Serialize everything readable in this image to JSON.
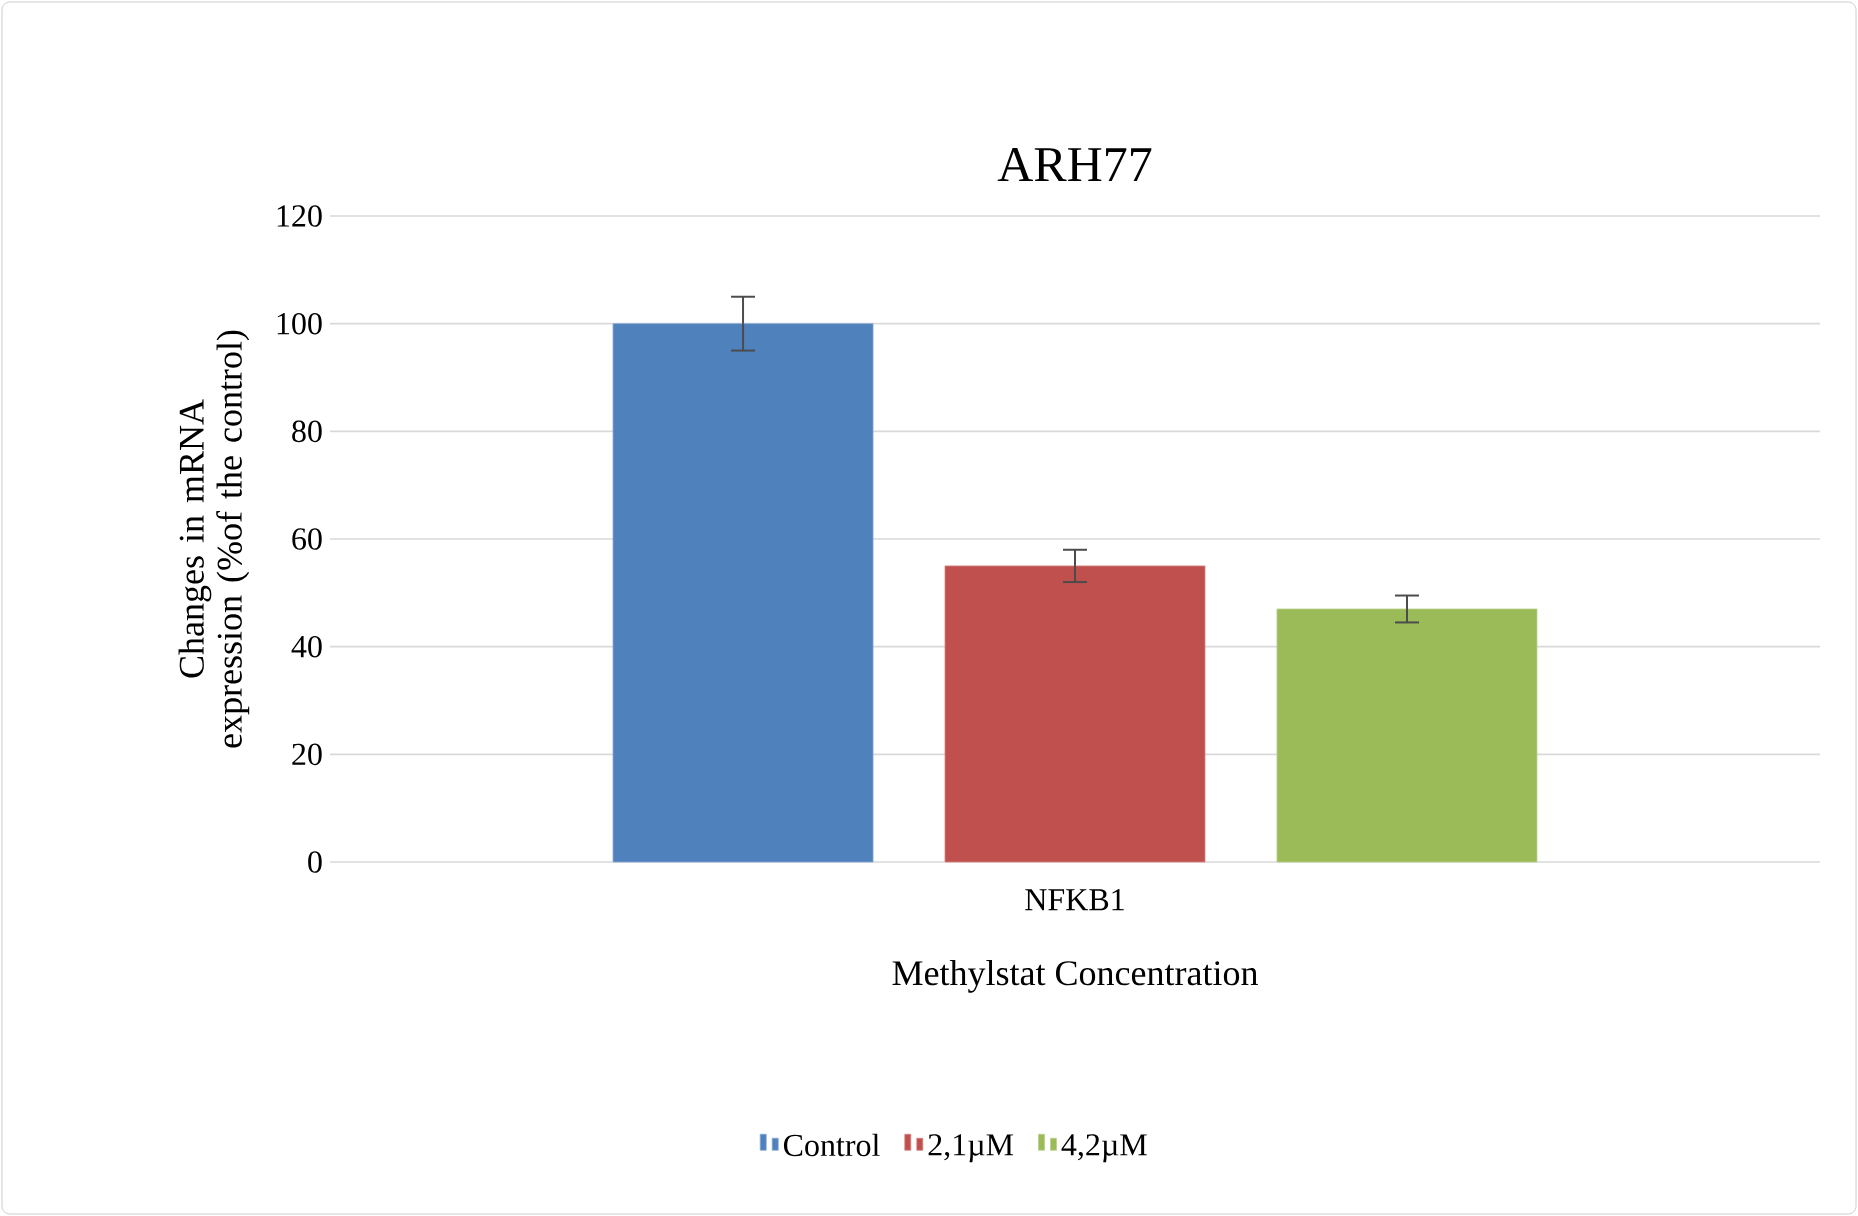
{
  "chart_data": {
    "type": "bar",
    "title": "ARH77",
    "xlabel": "Methylstat Concentration",
    "ylabel": "Changes in mRNA expression (%of the control)",
    "categories": [
      "NFKB1"
    ],
    "series": [
      {
        "name": "Control",
        "color": "#4f81bd",
        "values": [
          100
        ],
        "errors": [
          5
        ]
      },
      {
        "name": "2,1µM",
        "color": "#c0504d",
        "values": [
          55
        ],
        "errors": [
          3
        ]
      },
      {
        "name": "4,2µM",
        "color": "#9bbb59",
        "values": [
          47
        ],
        "errors": [
          2.5
        ]
      }
    ],
    "ylim": [
      0,
      120
    ],
    "yticks": [
      0,
      20,
      40,
      60,
      80,
      100,
      120
    ],
    "grid": "y",
    "legend": "bottom"
  }
}
